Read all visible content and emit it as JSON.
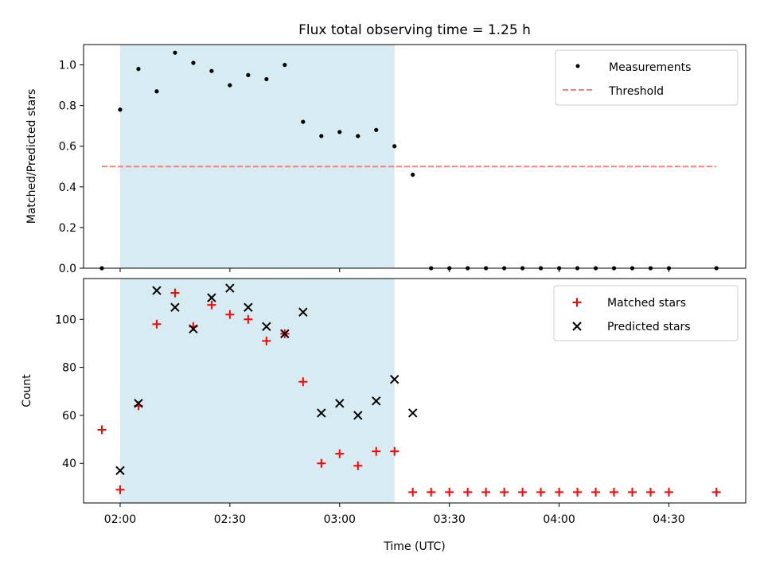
{
  "chart_data": [
    {
      "type": "scatter",
      "title": "Flux total observing time = 1.25 h",
      "xlabel": "",
      "ylabel": "Matched/Predicted stars",
      "ylim": [
        0,
        1.1
      ],
      "y_ticks": [
        "0.0",
        "0.2",
        "0.4",
        "0.6",
        "0.8",
        "1.0"
      ],
      "highlight_span": [
        "02:00",
        "03:15"
      ],
      "highlight_color": "#add8e6",
      "legend_position": "top-right",
      "series": [
        {
          "name": "Measurements",
          "marker": "dot",
          "color": "#000000",
          "x": [
            "01:55",
            "02:00",
            "02:05",
            "02:10",
            "02:15",
            "02:20",
            "02:25",
            "02:30",
            "02:35",
            "02:40",
            "02:45",
            "02:50",
            "02:55",
            "03:00",
            "03:05",
            "03:10",
            "03:15",
            "03:20",
            "03:25",
            "03:30",
            "03:35",
            "03:40",
            "03:45",
            "03:50",
            "03:55",
            "04:00",
            "04:05",
            "04:10",
            "04:15",
            "04:20",
            "04:25",
            "04:30",
            "04:43"
          ],
          "y": [
            0.0,
            0.78,
            0.98,
            0.87,
            1.06,
            1.01,
            0.97,
            0.9,
            0.95,
            0.93,
            1.0,
            0.72,
            0.65,
            0.67,
            0.65,
            0.68,
            0.6,
            0.46,
            0,
            0,
            0,
            0,
            0,
            0,
            0,
            0,
            0,
            0,
            0,
            0,
            0,
            0,
            0
          ]
        },
        {
          "name": "Threshold",
          "style": "dashed",
          "color": "#ff7f7f",
          "x": [
            "01:55",
            "04:43"
          ],
          "y": [
            0.5,
            0.5
          ]
        }
      ]
    },
    {
      "type": "scatter",
      "title": "",
      "xlabel": "Time (UTC)",
      "ylabel": "Count",
      "ylim": [
        23.5,
        117
      ],
      "y_ticks": [
        "40",
        "60",
        "80",
        "100"
      ],
      "x_ticks": [
        "02:00",
        "02:30",
        "03:00",
        "03:30",
        "04:00",
        "04:30"
      ],
      "xlim": [
        "01:50",
        "04:51"
      ],
      "highlight_span": [
        "02:00",
        "03:15"
      ],
      "highlight_color": "#add8e6",
      "legend_position": "top-right",
      "series": [
        {
          "name": "Matched stars",
          "marker": "plus",
          "color": "#ff0000",
          "x": [
            "01:55",
            "02:00",
            "02:05",
            "02:10",
            "02:15",
            "02:20",
            "02:25",
            "02:30",
            "02:35",
            "02:40",
            "02:45",
            "02:50",
            "02:55",
            "03:00",
            "03:05",
            "03:10",
            "03:15",
            "03:20",
            "03:25",
            "03:30",
            "03:35",
            "03:40",
            "03:45",
            "03:50",
            "03:55",
            "04:00",
            "04:05",
            "04:10",
            "04:15",
            "04:20",
            "04:25",
            "04:30",
            "04:43"
          ],
          "y": [
            54,
            29,
            64,
            98,
            111,
            97,
            106,
            102,
            100,
            91,
            94,
            74,
            40,
            44,
            39,
            45,
            45,
            28,
            28,
            28,
            28,
            28,
            28,
            28,
            28,
            28,
            28,
            28,
            28,
            28,
            28,
            28,
            28
          ]
        },
        {
          "name": "Predicted stars",
          "marker": "x",
          "color": "#000000",
          "x": [
            "02:00",
            "02:05",
            "02:10",
            "02:15",
            "02:20",
            "02:25",
            "02:30",
            "02:35",
            "02:40",
            "02:45",
            "02:50",
            "02:55",
            "03:00",
            "03:05",
            "03:10",
            "03:15",
            "03:20"
          ],
          "y": [
            37,
            65,
            112,
            105,
            96,
            109,
            113,
            105,
            97,
            94,
            103,
            61,
            65,
            60,
            66,
            75,
            61
          ]
        }
      ]
    }
  ]
}
